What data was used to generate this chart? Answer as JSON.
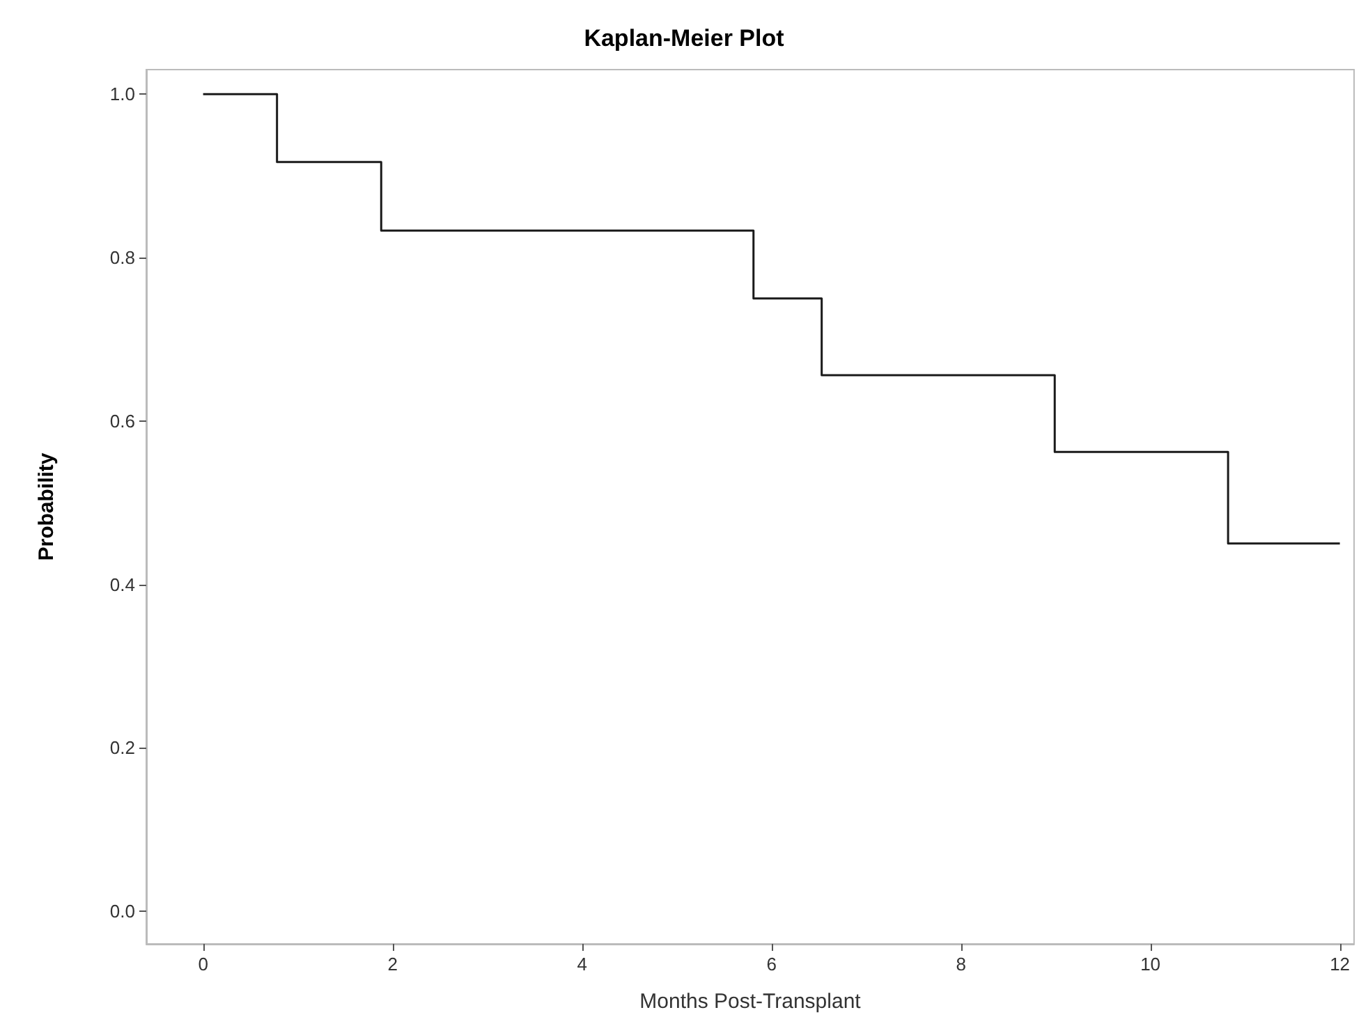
{
  "chart_data": {
    "type": "step",
    "title": "Kaplan-Meier Plot",
    "xlabel": "Months Post-Transplant",
    "ylabel": "Probability",
    "x": [
      0,
      0.78,
      1.88,
      5.81,
      6.53,
      8.99,
      10.82,
      12
    ],
    "series": [
      {
        "color": "#1a1a1a",
        "values": [
          1.0,
          0.917,
          0.833,
          0.75,
          0.656,
          0.562,
          0.45,
          0.45
        ]
      }
    ],
    "xlim": [
      -0.6,
      12.15
    ],
    "xticks": [
      0,
      2,
      4,
      6,
      8,
      10,
      12
    ],
    "ylim": [
      -0.04,
      1.03
    ],
    "yticks": [
      {
        "value": 0,
        "label": "0.0"
      },
      {
        "value": 0.2,
        "label": "0.2"
      },
      {
        "value": 0.4,
        "label": "0.4"
      },
      {
        "value": 0.6,
        "label": "0.6"
      },
      {
        "value": 0.8,
        "label": "0.8"
      },
      {
        "value": 1,
        "label": "1.0"
      }
    ],
    "grid": false,
    "marker": "none",
    "line_style": "solid"
  }
}
